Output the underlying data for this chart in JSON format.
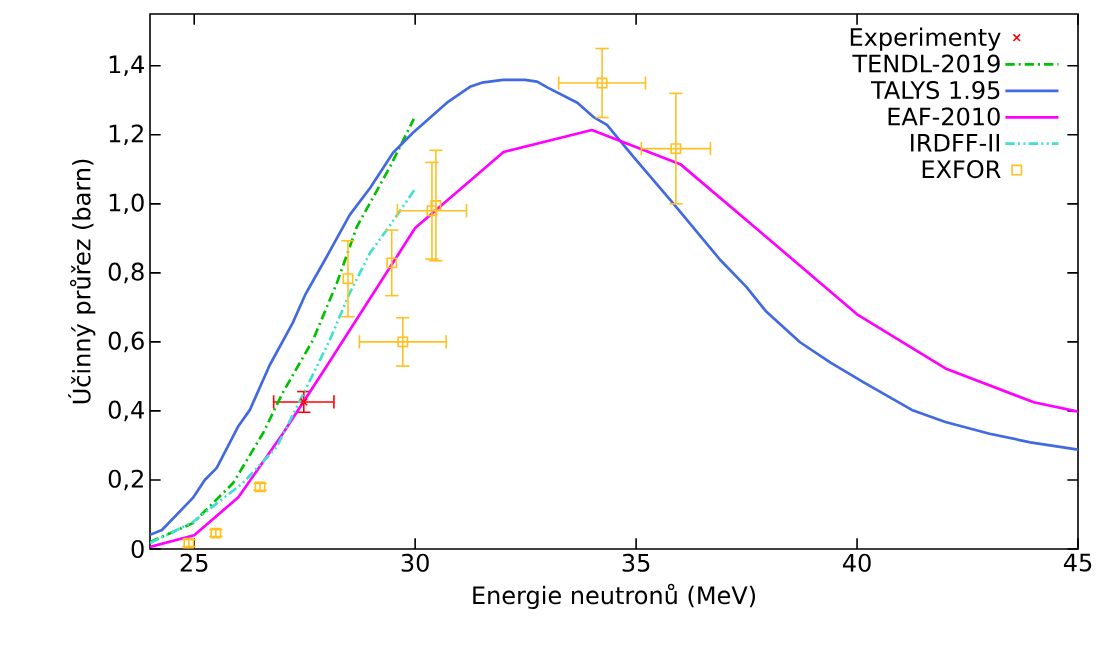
{
  "chart_data": {
    "type": "line",
    "xlabel": "Energie neutronů (MeV)",
    "ylabel": "Účinný průřez (barn)",
    "xlim": [
      24,
      45
    ],
    "ylim": [
      0,
      1.55
    ],
    "xticks": [
      25,
      30,
      35,
      40,
      45
    ],
    "yticks": [
      0,
      {
        "value": 0.2,
        "label": "0,2"
      },
      {
        "value": 0.4,
        "label": "0,4"
      },
      {
        "value": 0.6,
        "label": "0,6"
      },
      {
        "value": 0.8,
        "label": "0,8"
      },
      {
        "value": 1.0,
        "label": "1,0"
      },
      {
        "value": 1.2,
        "label": "1,2"
      },
      {
        "value": 1.4,
        "label": "1,4"
      }
    ],
    "legend": "top right",
    "series": [
      {
        "name": "Experimenty",
        "type": "scatter",
        "marker": "cross",
        "color": "#ff0000",
        "x": [
          27.48
        ],
        "values": [
          0.426
        ],
        "errors": [
          0.03
        ],
        "xerrors": [
          0.7
        ]
      },
      {
        "name": "TENDL-2019",
        "type": "line",
        "line_style": "dashdot",
        "color": "#00c000",
        "x": [
          24.0,
          24.97,
          25.88,
          26.56,
          27.0,
          27.69,
          28.23,
          28.68,
          29.43,
          29.97
        ],
        "values": [
          0.02,
          0.075,
          0.191,
          0.336,
          0.452,
          0.606,
          0.771,
          0.933,
          1.107,
          1.246
        ]
      },
      {
        "name": "TALYS 1.95",
        "type": "line",
        "line_style": "solid",
        "color": "#4169e1",
        "x": [
          24.0,
          24.27,
          24.97,
          25.24,
          25.51,
          25.99,
          26.26,
          26.71,
          27.23,
          27.51,
          27.96,
          28.52,
          28.98,
          29.5,
          29.95,
          30.72,
          31.24,
          31.51,
          31.99,
          32.48,
          32.76,
          33.01,
          33.67,
          34.03,
          34.34,
          34.96,
          35.83,
          36.9,
          37.49,
          37.95,
          38.71,
          39.4,
          40.17,
          41.24,
          42.0,
          43.0,
          43.92,
          45.0
        ],
        "values": [
          0.041,
          0.055,
          0.148,
          0.2,
          0.235,
          0.354,
          0.403,
          0.533,
          0.655,
          0.736,
          0.838,
          0.968,
          1.046,
          1.148,
          1.206,
          1.293,
          1.339,
          1.351,
          1.359,
          1.359,
          1.354,
          1.336,
          1.293,
          1.252,
          1.229,
          1.133,
          1.003,
          0.838,
          0.76,
          0.687,
          0.599,
          0.54,
          0.481,
          0.403,
          0.368,
          0.334,
          0.309,
          0.288
        ]
      },
      {
        "name": "EAF-2010",
        "type": "line",
        "line_style": "solid",
        "color": "#ff00ff",
        "x": [
          24,
          25,
          26,
          27,
          28,
          29,
          30,
          32,
          34,
          36,
          38,
          40,
          42,
          44,
          45
        ],
        "values": [
          0.006,
          0.04,
          0.15,
          0.333,
          0.53,
          0.73,
          0.93,
          1.15,
          1.214,
          1.115,
          0.898,
          0.68,
          0.523,
          0.425,
          0.398
        ]
      },
      {
        "name": "IRDFF-II",
        "type": "line",
        "line_style": "dashdotdot",
        "color": "#40e0d0",
        "x": [
          24.0,
          24.97,
          26.1,
          26.87,
          27.55,
          28.07,
          28.52,
          28.98,
          29.36,
          30.0
        ],
        "values": [
          0.017,
          0.078,
          0.191,
          0.296,
          0.47,
          0.606,
          0.742,
          0.858,
          0.925,
          1.043
        ]
      },
      {
        "name": "EXFOR",
        "type": "scatter",
        "marker": "square",
        "color": "#ffc020",
        "x": [
          24.88,
          25.49,
          26.49,
          28.48,
          29.47,
          29.72,
          30.38,
          30.47,
          34.23,
          35.9
        ],
        "values": [
          0.017,
          0.046,
          0.18,
          0.783,
          0.829,
          0.6,
          0.98,
          0.995,
          1.35,
          1.16
        ],
        "errors": [
          0.01,
          0.01,
          0.01,
          0.11,
          0.095,
          0.07,
          0.14,
          0.16,
          0.1,
          0.16
        ],
        "xerrors": [
          null,
          null,
          null,
          null,
          null,
          1.0,
          0.8,
          null,
          1.0,
          0.8
        ]
      }
    ]
  }
}
